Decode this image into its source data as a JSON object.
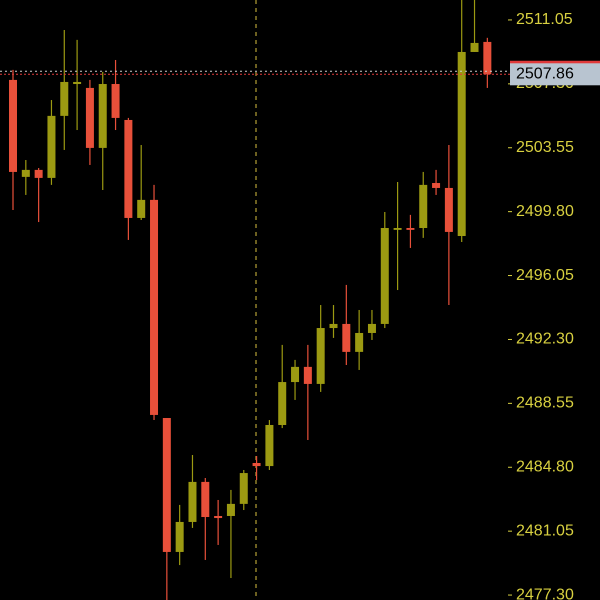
{
  "chart_data": {
    "type": "candlestick",
    "open": [
      2507.53,
      2501.84,
      2502.25,
      2501.78,
      2505.42,
      2507.29,
      2507.06,
      2503.54,
      2507.29,
      2505.18,
      2499.43,
      2500.49,
      2487.69,
      2479.83,
      2481.59,
      2483.94,
      2481.94,
      2481.94,
      2482.65,
      2485.05,
      2484.87,
      2487.28,
      2489.8,
      2490.69,
      2489.69,
      2492.97,
      2493.21,
      2491.57,
      2492.68,
      2493.21,
      2498.73,
      2498.84,
      2498.84,
      2501.48,
      2501.19,
      2498.37,
      2509.17,
      2509.76
    ],
    "high": [
      2508.12,
      2502.83,
      2502.36,
      2506.35,
      2510.46,
      2509.88,
      2507.53,
      2508.0,
      2508.7,
      2505.3,
      2503.71,
      2501.37,
      2487.69,
      2482.59,
      2485.52,
      2484.17,
      2482.88,
      2483.47,
      2484.64,
      2485.46,
      2487.57,
      2491.98,
      2491.1,
      2491.98,
      2494.32,
      2494.32,
      2495.5,
      2494.03,
      2494.03,
      2499.78,
      2501.54,
      2499.61,
      2502.13,
      2502.25,
      2503.71,
      2512.22,
      2512.22,
      2510.0
    ],
    "low": [
      2499.9,
      2500.78,
      2499.19,
      2501.37,
      2503.42,
      2504.59,
      2502.54,
      2501.07,
      2504.59,
      2498.14,
      2499.31,
      2487.57,
      2477.01,
      2479.06,
      2481.24,
      2479.36,
      2480.24,
      2478.3,
      2482.29,
      2484.05,
      2484.64,
      2487.1,
      2488.75,
      2486.4,
      2489.22,
      2492.39,
      2490.8,
      2490.51,
      2492.27,
      2492.97,
      2495.2,
      2497.67,
      2498.26,
      2500.78,
      2494.32,
      2498.02,
      2509.17,
      2507.06
    ],
    "close": [
      2502.13,
      2502.25,
      2501.78,
      2505.42,
      2507.41,
      2507.41,
      2503.54,
      2507.29,
      2505.3,
      2499.43,
      2500.49,
      2487.87,
      2479.83,
      2481.59,
      2483.94,
      2481.88,
      2481.82,
      2482.65,
      2484.46,
      2484.87,
      2487.28,
      2489.8,
      2490.69,
      2489.69,
      2492.97,
      2493.21,
      2491.57,
      2492.68,
      2493.21,
      2498.84,
      2498.84,
      2498.73,
      2501.37,
      2501.19,
      2498.61,
      2509.17,
      2509.7,
      2507.86
    ],
    "up_color": "#9c9a12",
    "down_color": "#e8503a",
    "last_price": 2507.86,
    "last_price_color": "#e03a3a",
    "ylim": [
      2477.01,
      2512.22
    ],
    "yticks": [
      {
        "value": 2477.3,
        "label": "2477.30"
      },
      2481.05,
      {
        "value": 2484.8,
        "label": "2484.80"
      },
      2488.55,
      {
        "value": 2492.3,
        "label": "2492.30"
      },
      2496.05,
      {
        "value": 2499.8,
        "label": "2499.80"
      },
      2503.55,
      {
        "value": 2507.3,
        "label": "2507.30"
      },
      2511.05
    ]
  }
}
